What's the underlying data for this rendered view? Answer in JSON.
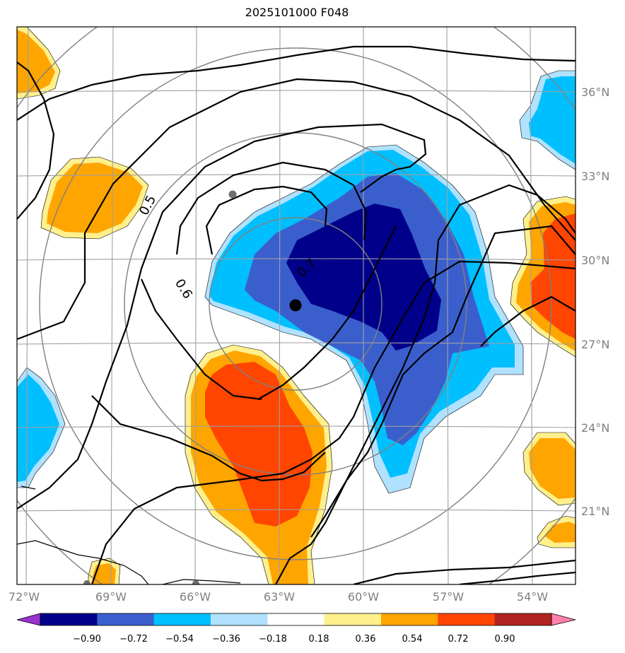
{
  "title": "2025101000 F048",
  "map": {
    "lon_labels": [
      "72°W",
      "69°W",
      "66°W",
      "63°W",
      "60°W",
      "57°W",
      "54°W"
    ],
    "lat_labels": [
      "36°N",
      "33°N",
      "30°N",
      "27°N",
      "24°N",
      "21°N"
    ],
    "contour_labels": [
      "0.5",
      "0.6",
      "0.7"
    ],
    "grid": true
  },
  "colorbar": {
    "ticks": [
      "−0.90",
      "−0.72",
      "−0.54",
      "−0.36",
      "−0.18",
      "0.18",
      "0.36",
      "0.54",
      "0.72",
      "0.90"
    ],
    "colors": [
      "#9a32cd",
      "#00008b",
      "#3a5fcd",
      "#00bfff",
      "#b0e2ff",
      "#ffffff",
      "#fff08c",
      "#ffa500",
      "#ff4500",
      "#b22222",
      "#ff82ab"
    ]
  },
  "colors": {
    "dark_blue": "#00008b",
    "mid_blue": "#3a5fcd",
    "sky_blue": "#00bfff",
    "light_blue": "#b0e2ff",
    "light_yellow": "#fff08c",
    "orange": "#ffa500",
    "red_orange": "#ff4500",
    "grid": "#a0a0a0"
  }
}
